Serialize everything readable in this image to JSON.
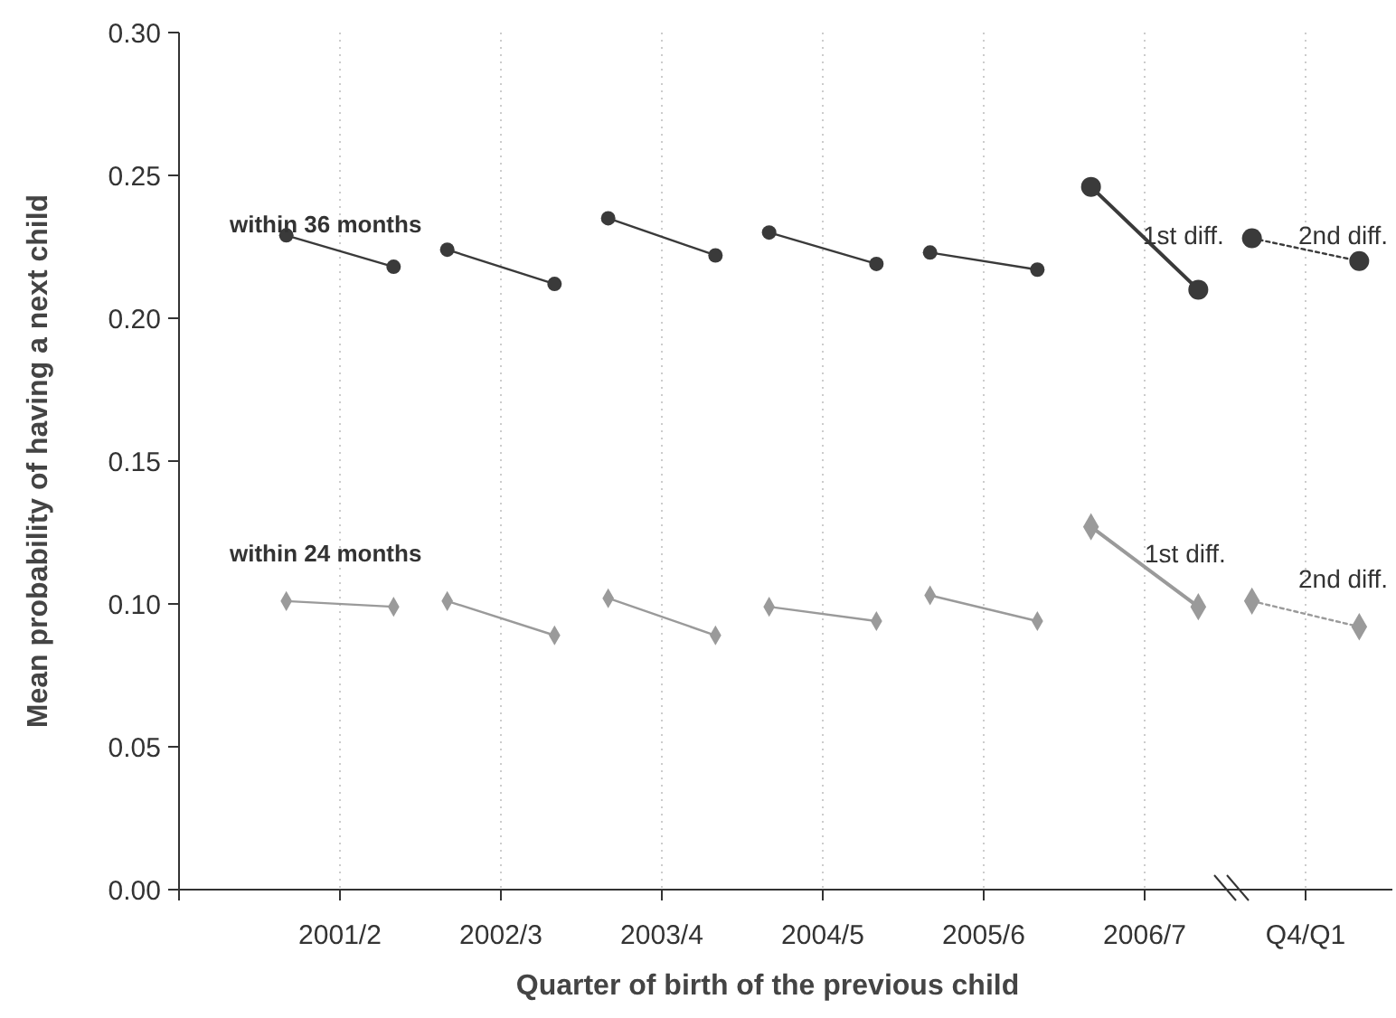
{
  "chart_data": {
    "type": "line",
    "xlabel": "Quarter of birth of the previous child",
    "ylabel": "Mean probability of having a next child",
    "categories": [
      null,
      "2001/2",
      null,
      null,
      "2002/3",
      null,
      null,
      "2003/4",
      null,
      null,
      "2004/5",
      null,
      null,
      "2005/6",
      null,
      null,
      "2006/7",
      null,
      null,
      "Q4/Q1",
      null
    ],
    "ylim": [
      0,
      0.3
    ],
    "yticks": [
      {
        "value": 0,
        "label": "0.00"
      },
      {
        "value": 0.05,
        "label": "0.05"
      },
      {
        "value": 0.1,
        "label": "0.10"
      },
      {
        "value": 0.15,
        "label": "0.15"
      },
      {
        "value": 0.2,
        "label": "0.20"
      },
      {
        "value": 0.25,
        "label": "0.25"
      },
      {
        "value": 0.3,
        "label": "0.30"
      }
    ],
    "grid": "x",
    "series": [
      {
        "color": "#3a3a3a",
        "marker": "circle",
        "values": [
          0.229,
          null,
          0.218,
          null,
          null,
          null,
          null,
          null,
          null,
          null,
          null,
          null,
          null,
          null,
          null,
          null,
          null,
          null,
          null,
          null,
          null
        ]
      },
      {
        "color": "#3a3a3a",
        "marker": "circle",
        "values": [
          null,
          null,
          null,
          0.224,
          null,
          0.212,
          null,
          null,
          null,
          null,
          null,
          null,
          null,
          null,
          null,
          null,
          null,
          null,
          null,
          null,
          null
        ]
      },
      {
        "color": "#3a3a3a",
        "marker": "circle",
        "values": [
          null,
          null,
          null,
          null,
          null,
          null,
          0.235,
          null,
          0.222,
          null,
          null,
          null,
          null,
          null,
          null,
          null,
          null,
          null,
          null,
          null,
          null
        ]
      },
      {
        "color": "#3a3a3a",
        "marker": "circle",
        "values": [
          null,
          null,
          null,
          null,
          null,
          null,
          null,
          null,
          null,
          0.23,
          null,
          0.219,
          null,
          null,
          null,
          null,
          null,
          null,
          null,
          null,
          null
        ]
      },
      {
        "color": "#3a3a3a",
        "marker": "circle",
        "values": [
          null,
          null,
          null,
          null,
          null,
          null,
          null,
          null,
          null,
          null,
          null,
          null,
          0.223,
          null,
          0.217,
          null,
          null,
          null,
          null,
          null,
          null
        ]
      },
      {
        "color": "#3a3a3a",
        "marker": "circle",
        "values": [
          null,
          null,
          null,
          null,
          null,
          null,
          null,
          null,
          null,
          null,
          null,
          null,
          null,
          null,
          null,
          0.246,
          null,
          0.21,
          null,
          null,
          null
        ]
      },
      {
        "color": "#3a3a3a",
        "marker": "circle",
        "line_style": "dotted",
        "values": [
          null,
          null,
          null,
          null,
          null,
          null,
          null,
          null,
          null,
          null,
          null,
          null,
          null,
          null,
          null,
          null,
          null,
          null,
          0.228,
          null,
          0.22
        ]
      },
      {
        "color": "#9a9a9a",
        "marker": "diamond",
        "values": [
          0.101,
          null,
          0.099,
          null,
          null,
          null,
          null,
          null,
          null,
          null,
          null,
          null,
          null,
          null,
          null,
          null,
          null,
          null,
          null,
          null,
          null
        ]
      },
      {
        "color": "#9a9a9a",
        "marker": "diamond",
        "values": [
          null,
          null,
          null,
          0.101,
          null,
          0.089,
          null,
          null,
          null,
          null,
          null,
          null,
          null,
          null,
          null,
          null,
          null,
          null,
          null,
          null,
          null
        ]
      },
      {
        "color": "#9a9a9a",
        "marker": "diamond",
        "values": [
          null,
          null,
          null,
          null,
          null,
          null,
          0.102,
          null,
          0.089,
          null,
          null,
          null,
          null,
          null,
          null,
          null,
          null,
          null,
          null,
          null,
          null
        ]
      },
      {
        "color": "#9a9a9a",
        "marker": "diamond",
        "values": [
          null,
          null,
          null,
          null,
          null,
          null,
          null,
          null,
          null,
          0.099,
          null,
          0.094,
          null,
          null,
          null,
          null,
          null,
          null,
          null,
          null,
          null
        ]
      },
      {
        "color": "#9a9a9a",
        "marker": "diamond",
        "values": [
          null,
          null,
          null,
          null,
          null,
          null,
          null,
          null,
          null,
          null,
          null,
          null,
          0.103,
          null,
          0.094,
          null,
          null,
          null,
          null,
          null,
          null
        ]
      },
      {
        "color": "#9a9a9a",
        "marker": "diamond",
        "values": [
          null,
          null,
          null,
          null,
          null,
          null,
          null,
          null,
          null,
          null,
          null,
          null,
          null,
          null,
          null,
          0.127,
          null,
          0.099,
          null,
          null,
          null
        ]
      },
      {
        "color": "#9a9a9a",
        "marker": "diamond",
        "line_style": "dotted",
        "values": [
          null,
          null,
          null,
          null,
          null,
          null,
          null,
          null,
          null,
          null,
          null,
          null,
          null,
          null,
          null,
          null,
          null,
          null,
          0.101,
          null,
          0.092
        ]
      }
    ],
    "annotations": [
      "within 36 months",
      "1st diff.",
      "2nd diff.",
      "within 24 months",
      "1st diff.",
      "2nd diff."
    ]
  }
}
